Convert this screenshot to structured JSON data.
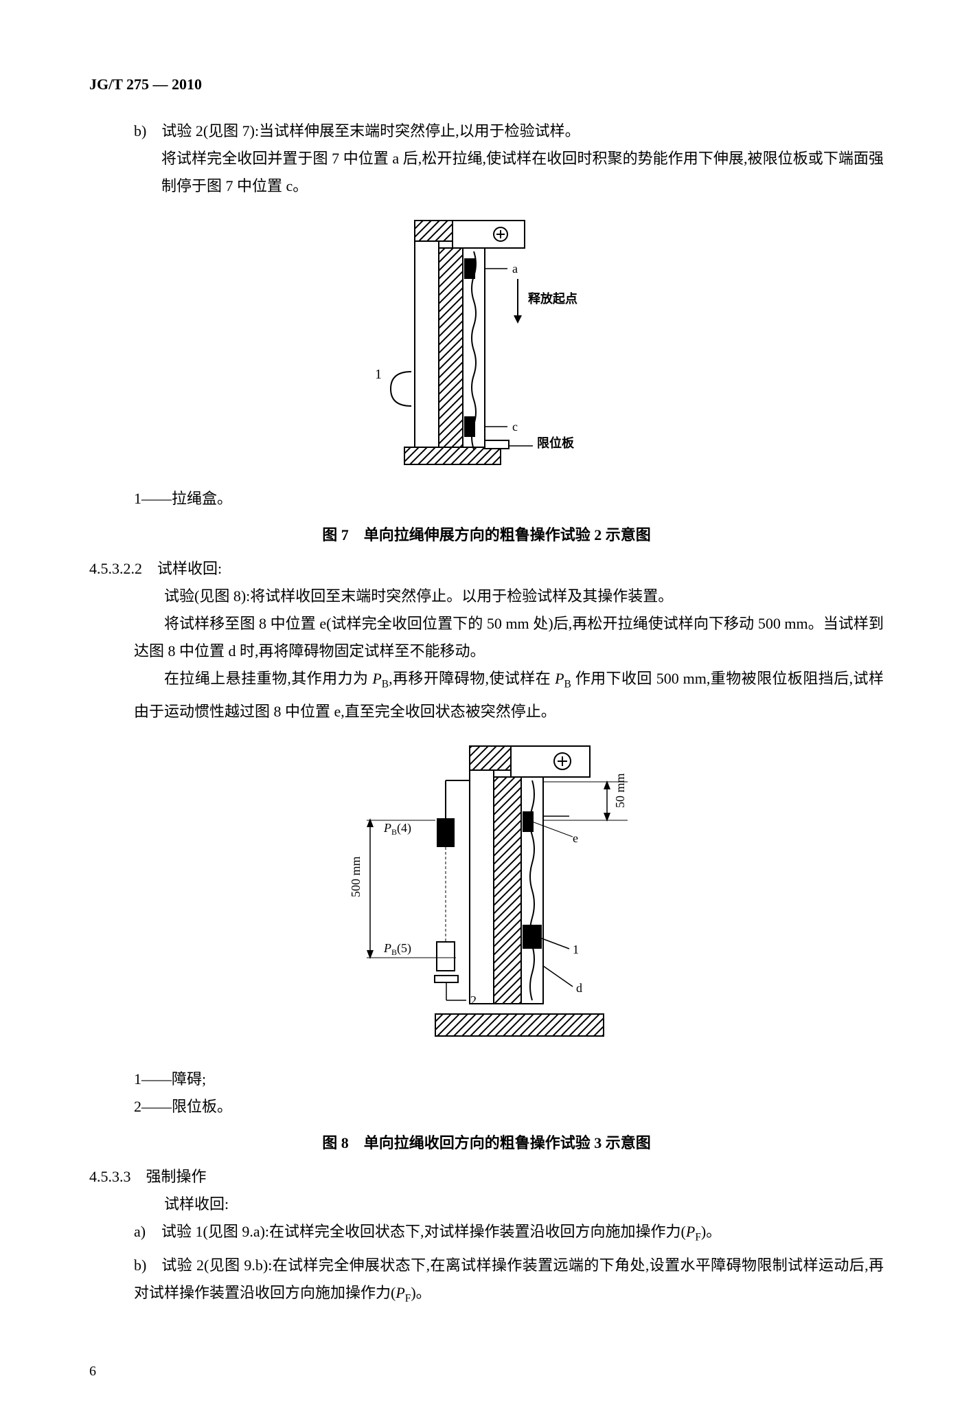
{
  "standard_code": "JG/T 275 — 2010",
  "item_b_label": "b)",
  "item_b_line1": "试验 2(见图 7):当试样伸展至末端时突然停止,以用于检验试样。",
  "item_b_line2": "将试样完全收回并置于图 7 中位置 a 后,松开拉绳,使试样在收回时积聚的势能作用下伸展,被限位板或下端面强制停于图 7 中位置 c。",
  "fig7": {
    "legend_1": "1——拉绳盒。",
    "caption": "图 7　单向拉绳伸展方向的粗鲁操作试验 2 示意图",
    "label_a": "a",
    "label_c": "c",
    "label_release": "释放起点",
    "label_limit": "限位板",
    "label_num1": "1",
    "colors": {
      "stroke": "#000000",
      "fill_white": "#ffffff",
      "hatch": "#000000"
    }
  },
  "sec_45322_num": "4.5.3.2.2",
  "sec_45322_title": "试样收回:",
  "sec_45322_p1": "试验(见图 8):将试样收回至末端时突然停止。以用于检验试样及其操作装置。",
  "sec_45322_p2": "将试样移至图 8 中位置 e(试样完全收回位置下的 50 mm 处)后,再松开拉绳使试样向下移动 500 mm。当试样到达图 8 中位置 d 时,再将障碍物固定试样至不能移动。",
  "sec_45322_p3_a": "在拉绳上悬挂重物,其作用力为 ",
  "sec_45322_p3_pb": "P",
  "sec_45322_p3_pb_sub": "B",
  "sec_45322_p3_b": ",再移开障碍物,使试样在 ",
  "sec_45322_p3_c": " 作用下收回 500 mm,重物被限位板阻挡后,试样由于运动惯性越过图 8 中位置 e,直至完全收回状态被突然停止。",
  "fig8": {
    "legend_1": "1——障碍;",
    "legend_2": "2——限位板。",
    "caption": "图 8　单向拉绳收回方向的粗鲁操作试验 3 示意图",
    "label_pb4": "P",
    "label_pb4_sub": "B",
    "label_pb4_paren": "(4)",
    "label_pb5": "P",
    "label_pb5_sub": "B",
    "label_pb5_paren": "(5)",
    "label_500": "500 mm",
    "label_50": "50 mm",
    "label_e": "e",
    "label_d": "d",
    "label_1": "1",
    "label_2": "2"
  },
  "sec_4533_num": "4.5.3.3",
  "sec_4533_title": "强制操作",
  "sec_4533_sub": "试样收回:",
  "sec_4533_a_label": "a)",
  "sec_4533_a_text_1": "试验 1(见图 9.a):在试样完全收回状态下,对试样操作装置沿收回方向施加操作力(",
  "sec_4533_a_pf": "P",
  "sec_4533_a_pf_sub": "F",
  "sec_4533_a_text_2": ")。",
  "sec_4533_b_label": "b)",
  "sec_4533_b_text_1": "试验 2(见图 9.b):在试样完全伸展状态下,在离试样操作装置远端的下角处,设置水平障碍物限制试样运动后,再对试样操作装置沿收回方向施加操作力(",
  "sec_4533_b_text_2": ")。",
  "page_number": "6"
}
